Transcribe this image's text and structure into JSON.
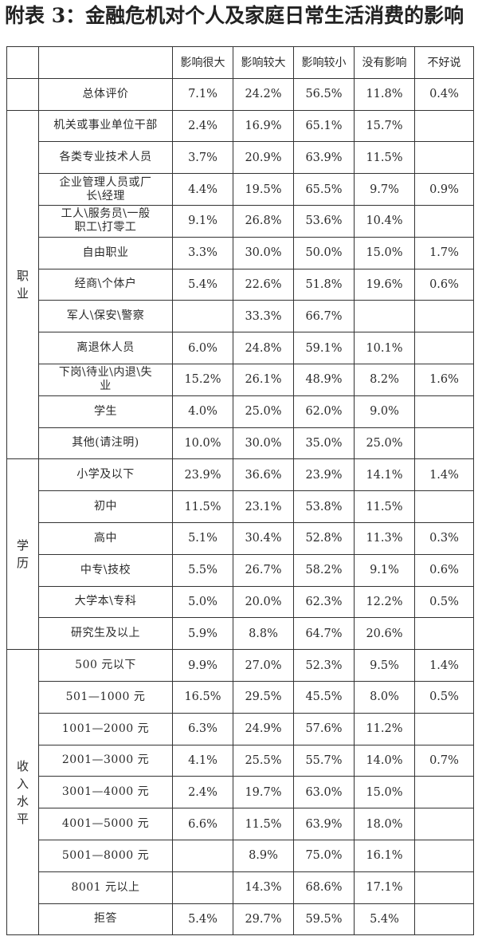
{
  "title": "附表 3：金融危机对个人及家庭日常生活消费的影响",
  "columns": [
    "影响很大",
    "影响较大",
    "影响较小",
    "没有影响",
    "不好说"
  ],
  "groups": [
    {
      "label": "",
      "rows": [
        {
          "name": "总体评价",
          "values": [
            "7.1%",
            "24.2%",
            "56.5%",
            "11.8%",
            "0.4%"
          ]
        }
      ]
    },
    {
      "label": "职业",
      "rows": [
        {
          "name": "机关或事业单位干部",
          "values": [
            "2.4%",
            "16.9%",
            "65.1%",
            "15.7%",
            ""
          ]
        },
        {
          "name": "各类专业技术人员",
          "values": [
            "3.7%",
            "20.9%",
            "63.9%",
            "11.5%",
            ""
          ]
        },
        {
          "name": "企业管理人员或厂长\\经理",
          "values": [
            "4.4%",
            "19.5%",
            "65.5%",
            "9.7%",
            "0.9%"
          ]
        },
        {
          "name": "工人\\服务员\\一般职工\\打零工",
          "values": [
            "9.1%",
            "26.8%",
            "53.6%",
            "10.4%",
            ""
          ]
        },
        {
          "name": "自由职业",
          "values": [
            "3.3%",
            "30.0%",
            "50.0%",
            "15.0%",
            "1.7%"
          ]
        },
        {
          "name": "经商\\个体户",
          "values": [
            "5.4%",
            "22.6%",
            "51.8%",
            "19.6%",
            "0.6%"
          ]
        },
        {
          "name": "军人\\保安\\警察",
          "values": [
            "",
            "33.3%",
            "66.7%",
            "",
            ""
          ]
        },
        {
          "name": "离退休人员",
          "values": [
            "6.0%",
            "24.8%",
            "59.1%",
            "10.1%",
            ""
          ]
        },
        {
          "name": "下岗\\待业\\内退\\失业",
          "values": [
            "15.2%",
            "26.1%",
            "48.9%",
            "8.2%",
            "1.6%"
          ]
        },
        {
          "name": "学生",
          "values": [
            "4.0%",
            "25.0%",
            "62.0%",
            "9.0%",
            ""
          ]
        },
        {
          "name": "其他(请注明)",
          "values": [
            "10.0%",
            "30.0%",
            "35.0%",
            "25.0%",
            ""
          ]
        }
      ]
    },
    {
      "label": "学历",
      "rows": [
        {
          "name": "小学及以下",
          "values": [
            "23.9%",
            "36.6%",
            "23.9%",
            "14.1%",
            "1.4%"
          ]
        },
        {
          "name": "初中",
          "values": [
            "11.5%",
            "23.1%",
            "53.8%",
            "11.5%",
            ""
          ]
        },
        {
          "name": "高中",
          "values": [
            "5.1%",
            "30.4%",
            "52.8%",
            "11.3%",
            "0.3%"
          ]
        },
        {
          "name": "中专\\技校",
          "values": [
            "5.5%",
            "26.7%",
            "58.2%",
            "9.1%",
            "0.6%"
          ]
        },
        {
          "name": "大学本\\专科",
          "values": [
            "5.0%",
            "20.0%",
            "62.3%",
            "12.2%",
            "0.5%"
          ]
        },
        {
          "name": "研究生及以上",
          "values": [
            "5.9%",
            "8.8%",
            "64.7%",
            "20.6%",
            ""
          ]
        }
      ]
    },
    {
      "label": "收入水平",
      "rows": [
        {
          "name": "500 元以下",
          "values": [
            "9.9%",
            "27.0%",
            "52.3%",
            "9.5%",
            "1.4%"
          ]
        },
        {
          "name": "501—1000 元",
          "values": [
            "16.5%",
            "29.5%",
            "45.5%",
            "8.0%",
            "0.5%"
          ]
        },
        {
          "name": "1001—2000 元",
          "values": [
            "6.3%",
            "24.9%",
            "57.6%",
            "11.2%",
            ""
          ]
        },
        {
          "name": "2001—3000 元",
          "values": [
            "4.1%",
            "25.5%",
            "55.7%",
            "14.0%",
            "0.7%"
          ]
        },
        {
          "name": "3001—4000 元",
          "values": [
            "2.4%",
            "19.7%",
            "63.0%",
            "15.0%",
            ""
          ]
        },
        {
          "name": "4001—5000 元",
          "values": [
            "6.6%",
            "11.5%",
            "63.9%",
            "18.0%",
            ""
          ]
        },
        {
          "name": "5001—8000 元",
          "values": [
            "",
            "8.9%",
            "75.0%",
            "16.1%",
            ""
          ]
        },
        {
          "name": "8001 元以上",
          "values": [
            "",
            "14.3%",
            "68.6%",
            "17.1%",
            ""
          ]
        },
        {
          "name": "拒答",
          "values": [
            "5.4%",
            "29.7%",
            "59.5%",
            "5.4%",
            ""
          ]
        }
      ]
    }
  ]
}
